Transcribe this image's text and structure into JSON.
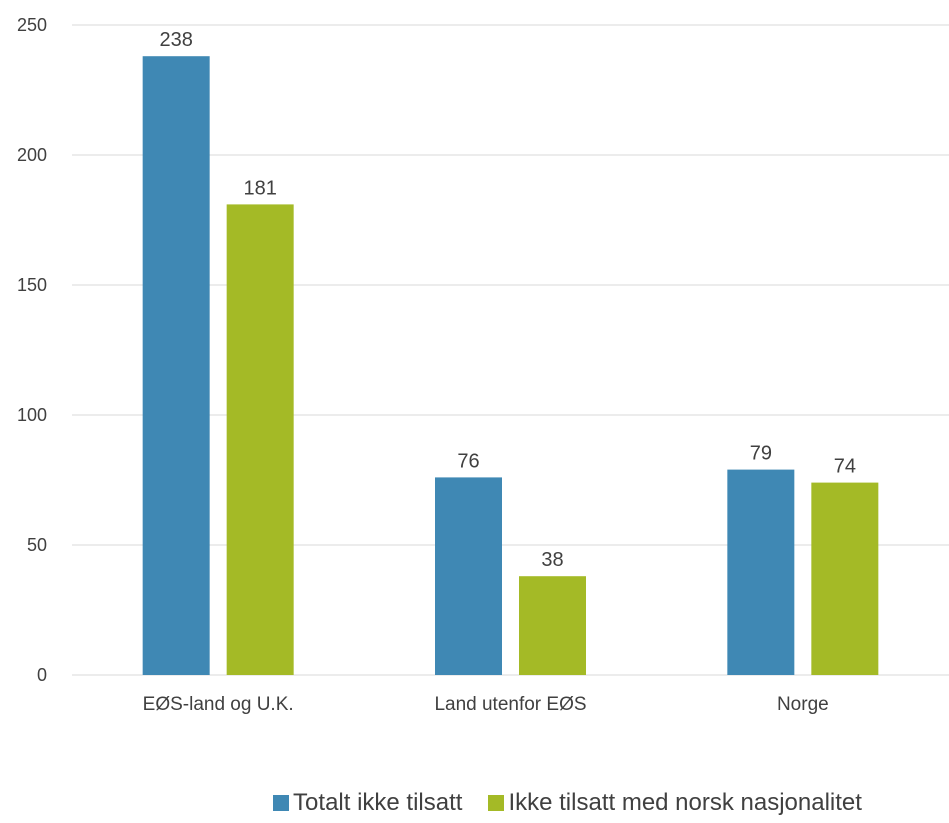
{
  "chart_data": {
    "type": "bar",
    "categories": [
      "EØS-land og U.K.",
      "Land utenfor EØS",
      "Norge"
    ],
    "series": [
      {
        "name": "Totalt ikke tilsatt",
        "values": [
          238,
          76,
          79
        ],
        "color": "#3f88b4"
      },
      {
        "name": "Ikke tilsatt med norsk nasjonalitet",
        "values": [
          181,
          38,
          74
        ],
        "color": "#a4ba26"
      }
    ],
    "yticks": [
      "0",
      "50",
      "100",
      "150",
      "200",
      "250"
    ],
    "ylim": [
      0,
      250
    ],
    "title": "",
    "xlabel": "",
    "ylabel": "",
    "grid": true,
    "legend_position": "bottom"
  }
}
